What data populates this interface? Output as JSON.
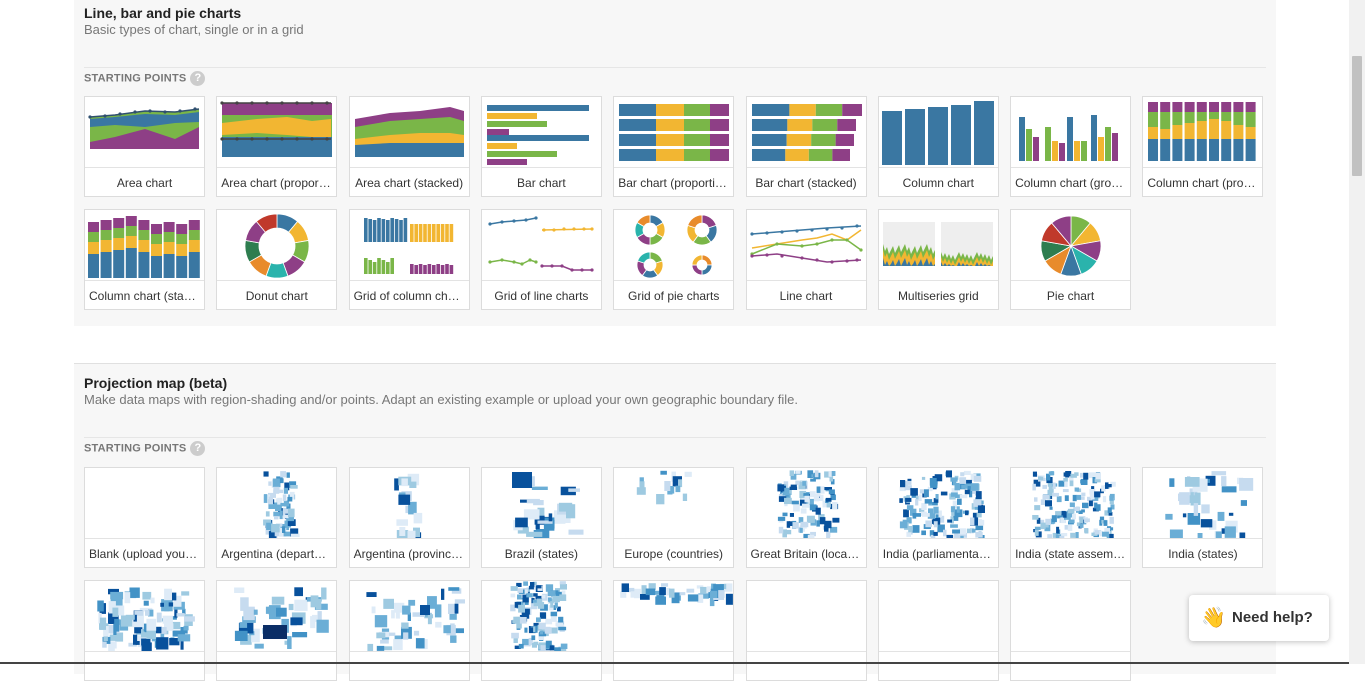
{
  "sections": [
    {
      "title": "Line, bar and pie charts",
      "subtitle": "Basic types of chart, single or in a grid",
      "starting_points_label": "STARTING POINTS",
      "help_glyph": "?",
      "cards": [
        {
          "label": "Area chart",
          "thumb": "area"
        },
        {
          "label": "Area chart (proportional)",
          "thumb": "area-prop"
        },
        {
          "label": "Area chart (stacked)",
          "thumb": "area-stacked"
        },
        {
          "label": "Bar chart",
          "thumb": "bar"
        },
        {
          "label": "Bar chart (proportional)",
          "thumb": "bar-prop"
        },
        {
          "label": "Bar chart (stacked)",
          "thumb": "bar-stacked"
        },
        {
          "label": "Column chart",
          "thumb": "column"
        },
        {
          "label": "Column chart (grouped)",
          "thumb": "column-grouped"
        },
        {
          "label": "Column chart (proportional)",
          "thumb": "column-prop"
        },
        {
          "label": "Column chart (stacked)",
          "thumb": "column-stacked"
        },
        {
          "label": "Donut chart",
          "thumb": "donut"
        },
        {
          "label": "Grid of column charts",
          "thumb": "grid-column"
        },
        {
          "label": "Grid of line charts",
          "thumb": "grid-line"
        },
        {
          "label": "Grid of pie charts",
          "thumb": "grid-pie"
        },
        {
          "label": "Line chart",
          "thumb": "line"
        },
        {
          "label": "Multiseries grid",
          "thumb": "multiseries"
        },
        {
          "label": "Pie chart",
          "thumb": "pie"
        }
      ]
    },
    {
      "title": "Projection map (beta)",
      "subtitle": "Make data maps with region-shading and/or points. Adapt an existing example or upload your own geographic boundary file.",
      "starting_points_label": "STARTING POINTS",
      "help_glyph": "?",
      "cards": [
        {
          "label": "Blank (upload your own)",
          "thumb": "blank"
        },
        {
          "label": "Argentina (departments)",
          "thumb": "map-argentina-dept"
        },
        {
          "label": "Argentina (provinces)",
          "thumb": "map-argentina-prov"
        },
        {
          "label": "Brazil (states)",
          "thumb": "map-brazil"
        },
        {
          "label": "Europe (countries)",
          "thumb": "map-europe"
        },
        {
          "label": "Great Britain (local authorities)",
          "thumb": "map-gb"
        },
        {
          "label": "India (parliamentary constituencies)",
          "thumb": "map-india-pc"
        },
        {
          "label": "India (state assembly constituencies)",
          "thumb": "map-india-ac"
        },
        {
          "label": "India (states)",
          "thumb": "map-india-states"
        },
        {
          "label": "",
          "thumb": "map-london"
        },
        {
          "label": "",
          "thumb": "map-spain"
        },
        {
          "label": "",
          "thumb": "map-spain-prov"
        },
        {
          "label": "",
          "thumb": "map-uk"
        },
        {
          "label": "",
          "thumb": "map-us"
        },
        {
          "label": "",
          "thumb": "blank"
        },
        {
          "label": "",
          "thumb": "blank"
        },
        {
          "label": "",
          "thumb": "blank"
        }
      ]
    }
  ],
  "help_button": {
    "label": "Need help?",
    "icon": "waving-hand-icon"
  },
  "colors": {
    "blue": "#3a77a2",
    "yellow": "#f2b632",
    "green": "#7ab648",
    "purple": "#8e3f86",
    "teal": "#2ab3ac",
    "orange": "#e88b2b",
    "darkgreen": "#2e7d4f",
    "map_dark": "#08519c",
    "map_mid": "#6baed6",
    "map_light": "#c6dbef"
  }
}
